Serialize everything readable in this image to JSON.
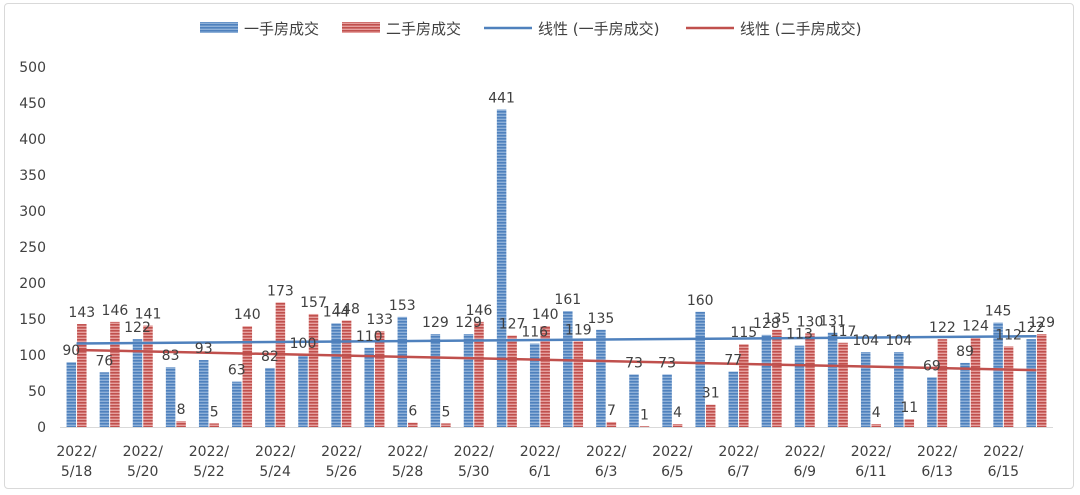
{
  "chart_data": {
    "type": "bar",
    "categories": [
      "2022/5/18",
      "2022/5/19",
      "2022/5/20",
      "2022/5/21",
      "2022/5/22",
      "2022/5/23",
      "2022/5/24",
      "2022/5/25",
      "2022/5/26",
      "2022/5/27",
      "2022/5/28",
      "2022/5/29",
      "2022/5/30",
      "2022/5/31",
      "2022/6/1",
      "2022/6/2",
      "2022/6/3",
      "2022/6/4",
      "2022/6/5",
      "2022/6/6",
      "2022/6/7",
      "2022/6/8",
      "2022/6/9",
      "2022/6/10",
      "2022/6/11",
      "2022/6/12",
      "2022/6/13",
      "2022/6/14",
      "2022/6/15",
      "2022/6/16"
    ],
    "x_tick_labels": [
      {
        "index": 0,
        "line1": "2022/",
        "line2": "5/18"
      },
      {
        "index": 2,
        "line1": "2022/",
        "line2": "5/20"
      },
      {
        "index": 4,
        "line1": "2022/",
        "line2": "5/22"
      },
      {
        "index": 6,
        "line1": "2022/",
        "line2": "5/24"
      },
      {
        "index": 8,
        "line1": "2022/",
        "line2": "5/26"
      },
      {
        "index": 10,
        "line1": "2022/",
        "line2": "5/28"
      },
      {
        "index": 12,
        "line1": "2022/",
        "line2": "5/30"
      },
      {
        "index": 14,
        "line1": "2022/",
        "line2": "6/1"
      },
      {
        "index": 16,
        "line1": "2022/",
        "line2": "6/3"
      },
      {
        "index": 18,
        "line1": "2022/",
        "line2": "6/5"
      },
      {
        "index": 20,
        "line1": "2022/",
        "line2": "6/7"
      },
      {
        "index": 22,
        "line1": "2022/",
        "line2": "6/9"
      },
      {
        "index": 24,
        "line1": "2022/",
        "line2": "6/11"
      },
      {
        "index": 26,
        "line1": "2022/",
        "line2": "6/13"
      },
      {
        "index": 28,
        "line1": "2022/",
        "line2": "6/15"
      }
    ],
    "series": [
      {
        "name": "一手房成交",
        "color": "#4f81bd",
        "values": [
          90,
          76,
          122,
          83,
          93,
          63,
          82,
          100,
          144,
          110,
          153,
          129,
          129,
          441,
          116,
          161,
          135,
          73,
          73,
          160,
          77,
          128,
          113,
          131,
          104,
          104,
          69,
          89,
          145,
          122
        ]
      },
      {
        "name": "二手房成交",
        "color": "#c0504d",
        "values": [
          143,
          146,
          141,
          8,
          5,
          140,
          173,
          157,
          148,
          133,
          6,
          5,
          146,
          127,
          140,
          119,
          7,
          1,
          4,
          31,
          115,
          135,
          130,
          117,
          4,
          11,
          122,
          124,
          112,
          129
        ]
      }
    ],
    "trendlines": [
      {
        "name": "线性 (一手房成交)",
        "color": "#4f81bd",
        "start": 116,
        "end": 126
      },
      {
        "name": "线性 (二手房成交)",
        "color": "#c0504d",
        "start": 107,
        "end": 79
      }
    ],
    "ylim": [
      0,
      500
    ],
    "yticks": [
      0,
      50,
      100,
      150,
      200,
      250,
      300,
      350,
      400,
      450,
      500
    ],
    "grid": false,
    "legend_position": "top",
    "title": "",
    "xlabel": "",
    "ylabel": ""
  }
}
